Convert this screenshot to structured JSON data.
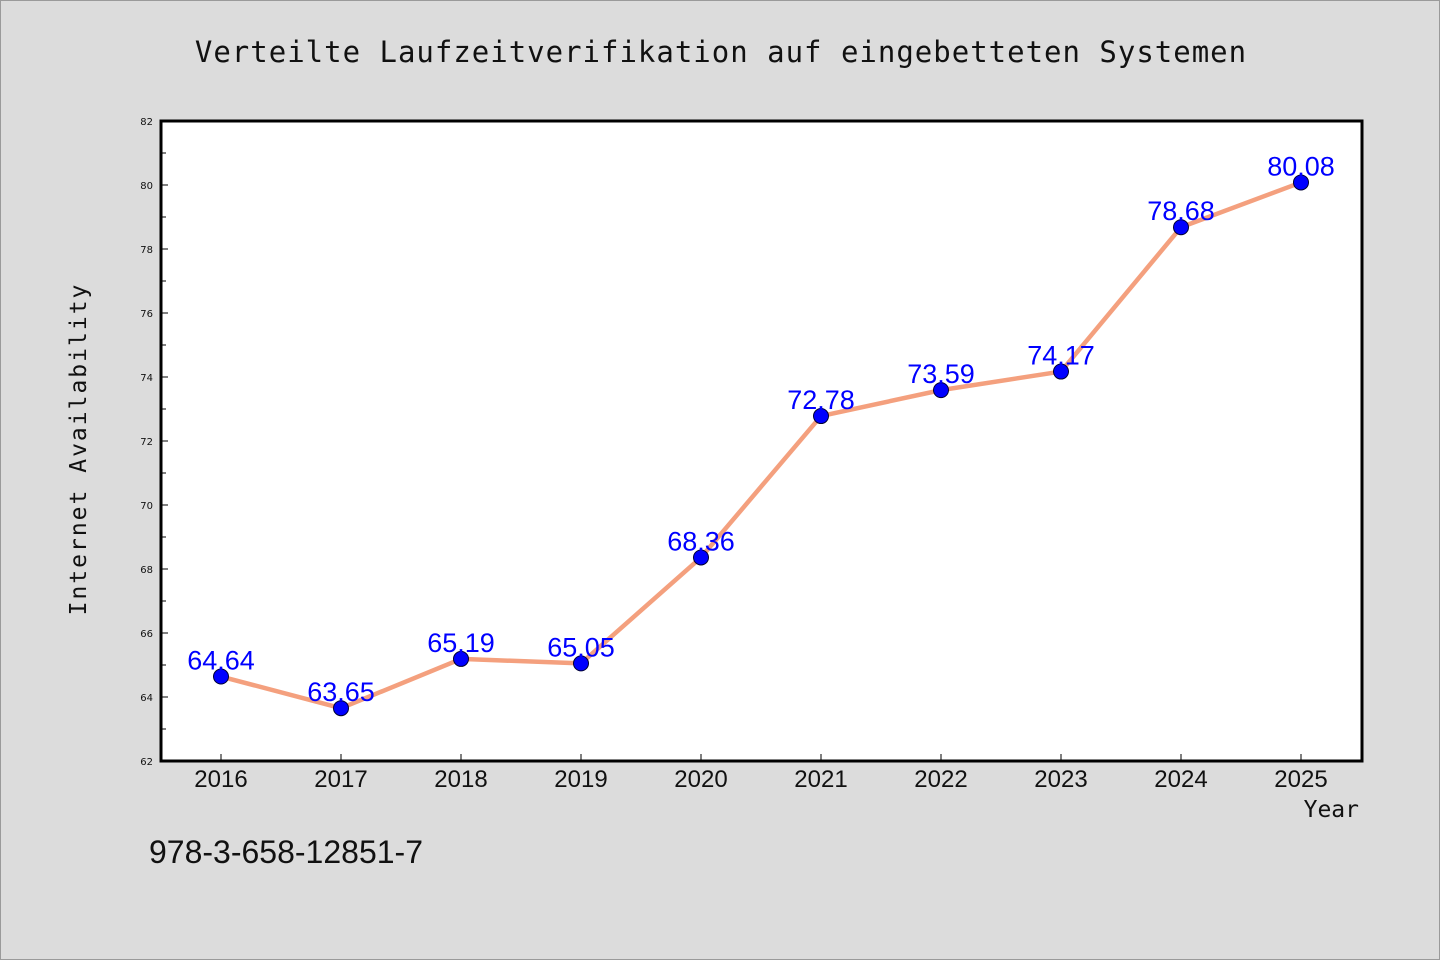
{
  "chart_data": {
    "type": "line",
    "title": "Verteilte Laufzeitverifikation auf eingebetteten Systemen",
    "xlabel": "Year",
    "ylabel": "Internet Availability",
    "categories": [
      "2016",
      "2017",
      "2018",
      "2019",
      "2020",
      "2021",
      "2022",
      "2023",
      "2024",
      "2025"
    ],
    "series": [
      {
        "values": [
          64.64,
          63.65,
          65.19,
          65.05,
          68.36,
          72.78,
          73.59,
          74.17,
          78.68,
          80.08
        ],
        "labels": [
          "64.64",
          "63.65",
          "65.19",
          "65.05",
          "68.36",
          "72.78",
          "73.59",
          "74.17",
          "78.68",
          "80.08"
        ]
      }
    ],
    "ylim": [
      62,
      82
    ],
    "yticks": [
      "62",
      "64",
      "66",
      "68",
      "70",
      "72",
      "74",
      "76",
      "78",
      "80",
      "82"
    ],
    "grid": false,
    "colors": {
      "line": "#f4a07e",
      "marker": "#0000ff",
      "label": "#0000ff",
      "background": "#dcdcdc",
      "plot_area": "#ffffff"
    }
  },
  "footnote": "978-3-658-12851-7"
}
